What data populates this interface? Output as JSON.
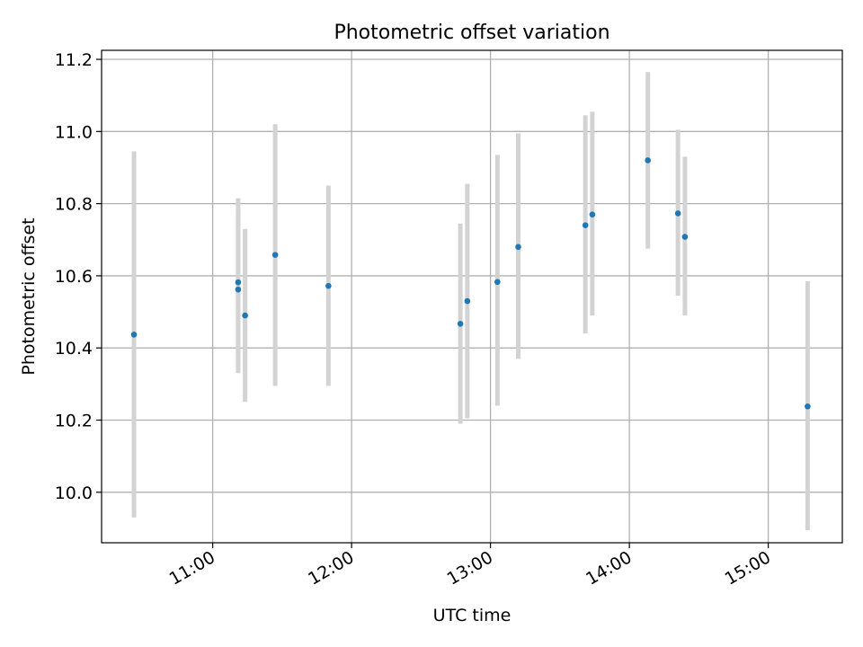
{
  "chart_data": {
    "type": "scatter",
    "title": "Photometric offset variation",
    "xlabel": "UTC time",
    "ylabel": "Photometric offset",
    "xlim": [
      "10:12",
      "15:32"
    ],
    "ylim": [
      9.86,
      11.225
    ],
    "grid": true,
    "x_ticks": [
      "11:00",
      "12:00",
      "13:00",
      "14:00",
      "15:00"
    ],
    "y_ticks": [
      "10.0",
      "10.2",
      "10.4",
      "10.6",
      "10.8",
      "11.0",
      "11.2"
    ],
    "points": [
      {
        "x": "10:26",
        "y": 10.437,
        "err_low": 9.93,
        "err_high": 10.945
      },
      {
        "x": "11:11",
        "y": 10.582,
        "err_low": 10.33,
        "err_high": 10.815
      },
      {
        "x": "11:11",
        "y": 10.562,
        "err_low": 10.35,
        "err_high": 10.78
      },
      {
        "x": "11:14",
        "y": 10.49,
        "err_low": 10.25,
        "err_high": 10.73
      },
      {
        "x": "11:27",
        "y": 10.658,
        "err_low": 10.295,
        "err_high": 11.02
      },
      {
        "x": "11:50",
        "y": 10.572,
        "err_low": 10.295,
        "err_high": 10.85
      },
      {
        "x": "12:47",
        "y": 10.467,
        "err_low": 10.19,
        "err_high": 10.745
      },
      {
        "x": "12:50",
        "y": 10.53,
        "err_low": 10.205,
        "err_high": 10.855
      },
      {
        "x": "13:03",
        "y": 10.583,
        "err_low": 10.24,
        "err_high": 10.935
      },
      {
        "x": "13:12",
        "y": 10.68,
        "err_low": 10.37,
        "err_high": 10.995
      },
      {
        "x": "13:41",
        "y": 10.74,
        "err_low": 10.44,
        "err_high": 11.045
      },
      {
        "x": "13:44",
        "y": 10.77,
        "err_low": 10.49,
        "err_high": 11.055
      },
      {
        "x": "14:08",
        "y": 10.92,
        "err_low": 10.675,
        "err_high": 11.165
      },
      {
        "x": "14:21",
        "y": 10.773,
        "err_low": 10.545,
        "err_high": 11.005
      },
      {
        "x": "14:24",
        "y": 10.708,
        "err_low": 10.49,
        "err_high": 10.93
      },
      {
        "x": "15:17",
        "y": 10.238,
        "err_low": 9.895,
        "err_high": 10.585
      }
    ],
    "colors": {
      "point": "#1f77b4",
      "errorbar": "#d3d3d3",
      "grid": "#b0b0b0",
      "axes": "#000000"
    }
  }
}
